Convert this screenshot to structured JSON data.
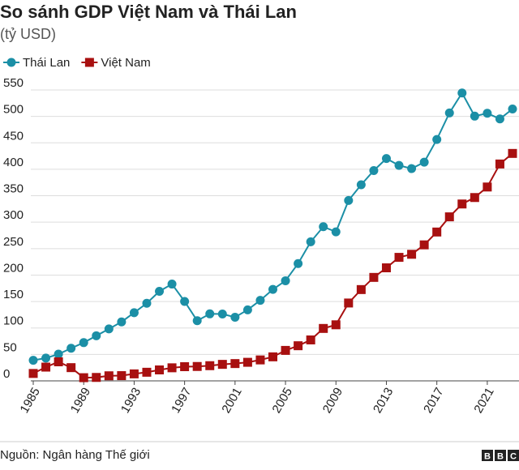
{
  "chart_data": {
    "type": "line",
    "title": "So sánh GDP Việt Nam và Thái Lan",
    "subtitle": "(tỷ USD)",
    "source": "Nguồn: Ngân hàng Thế giới",
    "logo": [
      "B",
      "B",
      "C"
    ],
    "x": [
      1985,
      1986,
      1987,
      1988,
      1989,
      1990,
      1991,
      1992,
      1993,
      1994,
      1995,
      1996,
      1997,
      1998,
      1999,
      2000,
      2001,
      2002,
      2003,
      2004,
      2005,
      2006,
      2007,
      2008,
      2009,
      2010,
      2011,
      2012,
      2013,
      2014,
      2015,
      2016,
      2017,
      2018,
      2019,
      2020,
      2021,
      2022,
      2023
    ],
    "series": [
      {
        "name": "Thái Lan",
        "color": "#1b8fa6",
        "marker": "circle",
        "values": [
          38.9,
          43.1,
          50.5,
          61.7,
          72.3,
          85.3,
          98.2,
          111.5,
          128.9,
          146.7,
          169.3,
          183.0,
          150.2,
          113.7,
          126.7,
          126.4,
          120.3,
          134.3,
          152.3,
          172.9,
          189.3,
          221.8,
          262.9,
          291.4,
          281.7,
          341.1,
          370.8,
          397.6,
          420.3,
          407.3,
          401.3,
          413.4,
          456.4,
          506.6,
          544.3,
          500.5,
          505.9,
          495.3,
          514
        ]
      },
      {
        "name": "Việt Nam",
        "color": "#a81010",
        "marker": "square",
        "values": [
          14,
          26,
          36,
          25,
          6,
          6.5,
          9.6,
          9.9,
          13.2,
          16.3,
          20.7,
          24.7,
          26.8,
          27.2,
          28.7,
          31.2,
          32.7,
          35.1,
          39.6,
          45.4,
          57.6,
          66.4,
          77.4,
          99.1,
          106,
          147.2,
          172.6,
          195.6,
          213.7,
          233.5,
          239.3,
          257.1,
          281.4,
          310.1,
          334.4,
          346.6,
          366.5,
          410,
          430
        ]
      }
    ],
    "xlim": [
      1985,
      2023
    ],
    "xticks": [
      1985,
      1989,
      1993,
      1997,
      2001,
      2005,
      2009,
      2013,
      2017,
      2021
    ],
    "ylim": [
      0,
      550
    ],
    "yticks": [
      0,
      50,
      100,
      150,
      200,
      250,
      300,
      350,
      400,
      450,
      500,
      550
    ],
    "grid": true
  }
}
